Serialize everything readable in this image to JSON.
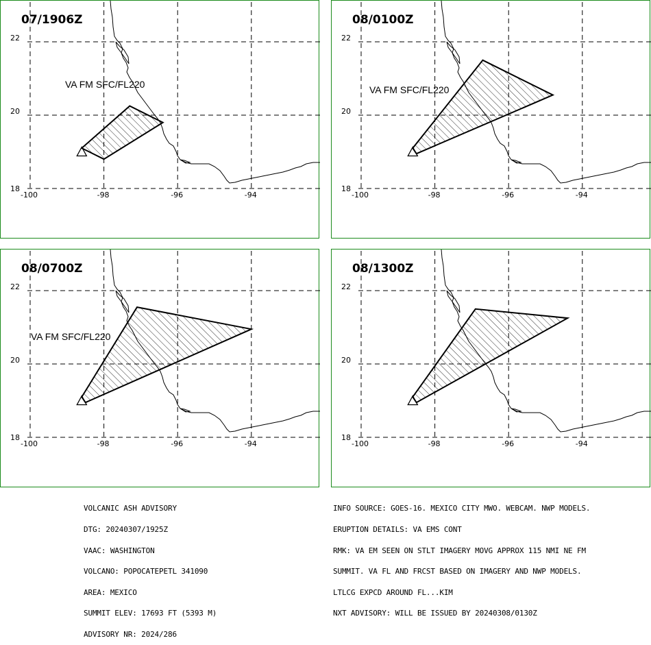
{
  "panels": [
    {
      "title": "07/1906Z",
      "label": "VA FM SFC/FL220",
      "polygon": [
        [
          -98.6,
          19.1
        ],
        [
          -98.0,
          18.8
        ],
        [
          -96.4,
          19.8
        ],
        [
          -97.3,
          20.25
        ],
        [
          -98.6,
          19.1
        ]
      ]
    },
    {
      "title": "08/0100Z",
      "label": "VA FM SFC/FL220",
      "polygon": [
        [
          -98.6,
          19.1
        ],
        [
          -98.5,
          18.95
        ],
        [
          -94.8,
          20.55
        ],
        [
          -96.7,
          21.5
        ],
        [
          -98.6,
          19.1
        ]
      ]
    },
    {
      "title": "08/0700Z",
      "label": "VA FM SFC/FL220",
      "polygon": [
        [
          -98.6,
          19.1
        ],
        [
          -98.5,
          18.95
        ],
        [
          -94.0,
          20.95
        ],
        [
          -97.1,
          21.55
        ],
        [
          -98.6,
          19.1
        ]
      ]
    },
    {
      "title": "08/1300Z",
      "label": "",
      "polygon": [
        [
          -98.6,
          19.1
        ],
        [
          -98.5,
          18.95
        ],
        [
          -94.4,
          21.25
        ],
        [
          -96.9,
          21.5
        ],
        [
          -98.6,
          19.1
        ]
      ]
    }
  ],
  "map": {
    "lon_ticks": [
      "-100",
      "-98",
      "-96",
      "-94"
    ],
    "lat_ticks": [
      "22",
      "20",
      "18"
    ],
    "volcano_marker": "volcano-triangle-icon"
  },
  "advisory_left": [
    "VOLCANIC ASH ADVISORY",
    "DTG: 20240307/1925Z",
    "VAAC: WASHINGTON",
    "VOLCANO: POPOCATEPETL 341090",
    "AREA: MEXICO",
    "SUMMIT ELEV: 17693 FT (5393 M)",
    "ADVISORY NR: 2024/286"
  ],
  "advisory_right": [
    "INFO SOURCE: GOES-16. MEXICO CITY MWO. WEBCAM. NWP MODELS.",
    "ERUPTION DETAILS: VA EMS CONT",
    "RMK: VA EM SEEN ON STLT IMAGERY MOVG APPROX 115 NMI NE FM",
    "SUMMIT. VA FL AND FRCST BASED ON IMAGERY AND NWP MODELS.",
    "LTLCG EXPCD AROUND FL...KIM",
    "NXT ADVISORY: WILL BE ISSUED BY 20240308/0130Z"
  ],
  "colors": {
    "panel_border": "#1a8a1a",
    "ash_outline": "#000000",
    "grid": "#000000"
  }
}
